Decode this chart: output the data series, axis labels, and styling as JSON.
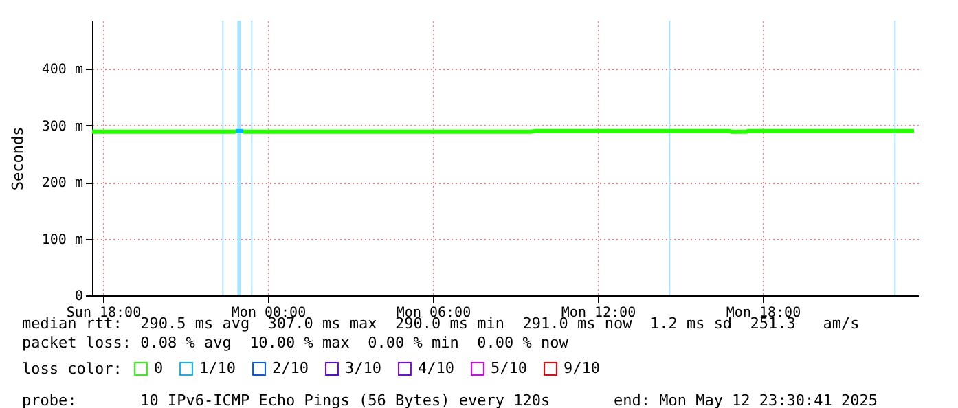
{
  "chart_data": {
    "type": "line",
    "ylabel": "Seconds",
    "xlim": [
      "2025-05-11T17:36",
      "2025-05-12T23:39"
    ],
    "xticks": [
      {
        "value": "2025-05-11T18:00",
        "label": "Sun 18:00"
      },
      {
        "value": "2025-05-12T00:00",
        "label": "Mon 00:00"
      },
      {
        "value": "2025-05-12T06:00",
        "label": "Mon 06:00"
      },
      {
        "value": "2025-05-12T12:00",
        "label": "Mon 12:00"
      },
      {
        "value": "2025-05-12T18:00",
        "label": "Mon 18:00"
      }
    ],
    "ylim": [
      0,
      485
    ],
    "yticks": [
      0,
      {
        "value": 100,
        "label": "100 m"
      },
      {
        "value": 200,
        "label": "200 m"
      },
      {
        "value": 300,
        "label": "300 m"
      },
      {
        "value": 400,
        "label": "400 m"
      }
    ],
    "grid": true,
    "legend": "bottom",
    "legend_title": "loss color:",
    "line_style": "solid",
    "marker": "none",
    "series": [
      {
        "name": "0",
        "color": "#26ff00",
        "x": [
          "2025-05-11T17:36",
          "2025-05-11T22:18",
          "2025-05-11T22:50",
          "2025-05-11T22:58",
          "2025-05-11T23:06",
          "2025-05-12T02:00",
          "2025-05-12T06:00",
          "2025-05-12T09:36",
          "2025-05-12T09:42",
          "2025-05-12T13:00",
          "2025-05-12T16:48",
          "2025-05-12T16:51",
          "2025-05-12T17:24",
          "2025-05-12T17:27",
          "2025-05-12T20:00",
          "2025-05-12T23:30"
        ],
        "values": [
          289,
          289,
          289,
          null,
          289,
          289,
          289,
          289,
          290,
          290,
          290,
          289,
          289,
          290,
          290,
          290
        ]
      },
      {
        "name": "1/10",
        "color": "#00b8ff",
        "x": [
          "2025-05-11T22:50",
          "2025-05-11T22:58",
          "2025-05-11T23:06"
        ],
        "values": [
          290,
          290,
          290
        ]
      },
      {
        "name": "2/10",
        "color": "#0059ff"
      },
      {
        "name": "3/10",
        "color": "#5e00ff"
      },
      {
        "name": "4/10",
        "color": "#7e00ff"
      },
      {
        "name": "5/10",
        "color": "#dd00ff"
      },
      {
        "name": "9/10",
        "color": "#ff0000"
      }
    ],
    "bands": [
      {
        "axis": "x",
        "from": "2025-05-11T22:20",
        "to": "2025-05-11T22:23",
        "color": "#a8e4ff"
      },
      {
        "axis": "x",
        "from": "2025-05-11T22:53",
        "to": "2025-05-11T23:01",
        "color": "#a8e4ff"
      },
      {
        "axis": "x",
        "from": "2025-05-11T23:23",
        "to": "2025-05-11T23:26",
        "color": "#a8e4ff"
      },
      {
        "axis": "x",
        "from": "2025-05-12T14:35",
        "to": "2025-05-12T14:38",
        "color": "#a8e4ff"
      },
      {
        "axis": "x",
        "from": "2025-05-12T22:47",
        "to": "2025-05-12T22:50",
        "color": "#a8e4ff"
      }
    ],
    "annotations": [
      "median rtt:  290.5 ms avg  307.0 ms max  290.0 ms min  291.0 ms now  1.2 ms sd  251.3   am/s",
      "packet loss: 0.08 % avg  10.00 % max  0.00 % min  0.00 % now",
      "probe:       10 IPv6-ICMP Echo Pings (56 Bytes) every 120s       end: Mon May 12 23:30:41 2025"
    ]
  }
}
